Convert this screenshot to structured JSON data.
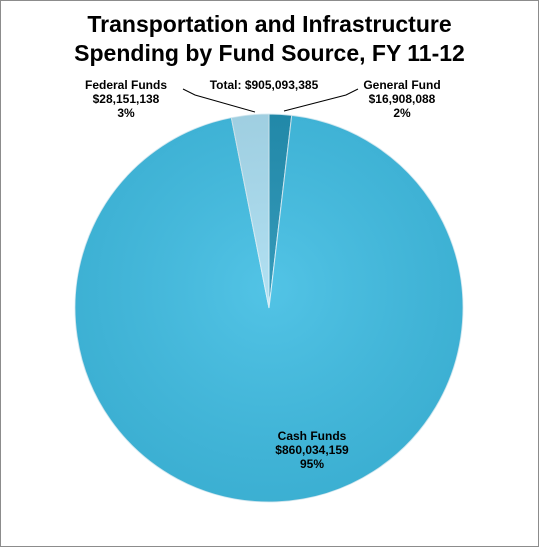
{
  "chart_data": {
    "type": "pie",
    "title_lines": [
      "Transportation and Infrastructure",
      "Spending by Fund Source, FY 11-12"
    ],
    "total_label": "Total: $905,093,385",
    "slices": [
      {
        "name": "General Fund",
        "amount": "$16,908,088",
        "percent": "2%",
        "value": 16908088,
        "color": "#1f8fb2"
      },
      {
        "name": "Cash Funds",
        "amount": "$860,034,159",
        "percent": "95%",
        "value": 860034159,
        "color": "#3fbde3"
      },
      {
        "name": "Federal Funds",
        "amount": "$28,151,138",
        "percent": "3%",
        "value": 28151138,
        "color": "#a8dcf0"
      }
    ]
  }
}
